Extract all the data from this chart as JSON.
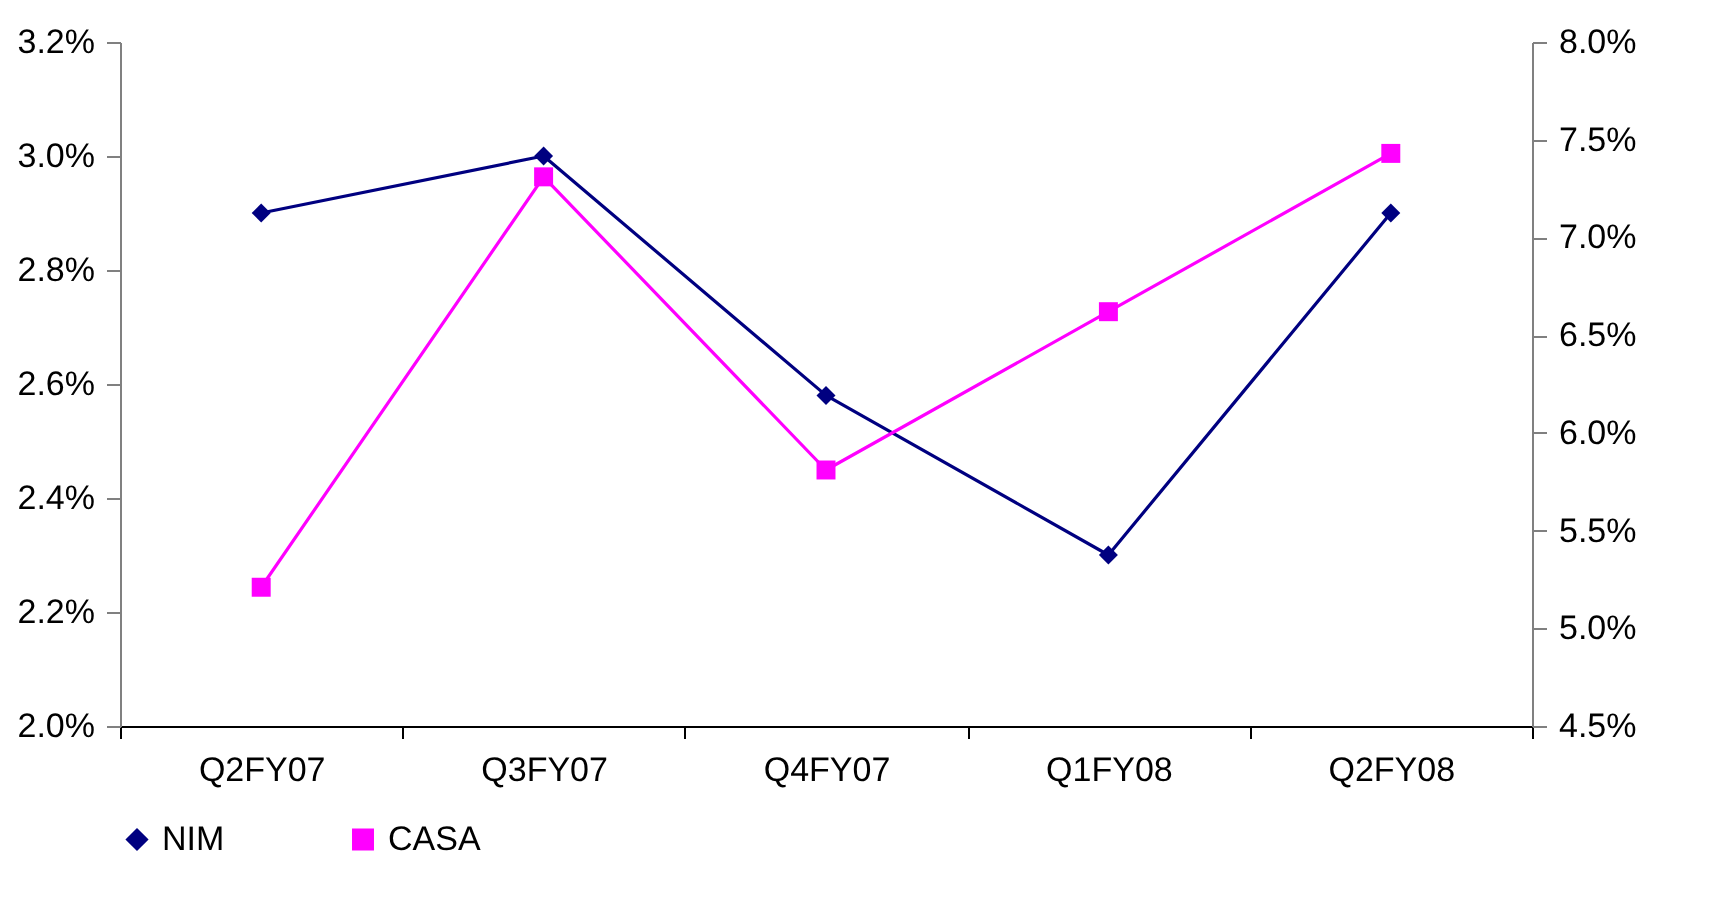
{
  "chart_data": {
    "type": "line",
    "categories": [
      "Q2FY07",
      "Q3FY07",
      "Q4FY07",
      "Q1FY08",
      "Q2FY08"
    ],
    "series": [
      {
        "name": "NIM",
        "color": "#000080",
        "marker": "diamond",
        "values": [
          2.9,
          3.0,
          2.58,
          2.3,
          2.9
        ]
      },
      {
        "name": "CASA",
        "color": "#ff00ff",
        "marker": "square",
        "axis": "y2",
        "values": [
          5.21,
          7.31,
          5.81,
          6.62,
          7.43
        ]
      }
    ],
    "ylim": [
      2.0,
      3.2
    ],
    "yticks": [
      {
        "value": 2.0,
        "label": "2.0%"
      },
      {
        "value": 2.2,
        "label": "2.2%"
      },
      {
        "value": 2.4,
        "label": "2.4%"
      },
      {
        "value": 2.6,
        "label": "2.6%"
      },
      {
        "value": 2.8,
        "label": "2.8%"
      },
      {
        "value": 3.0,
        "label": "3.0%"
      },
      {
        "value": 3.2,
        "label": "3.2%"
      }
    ],
    "y2lim": [
      4.5,
      8.0
    ],
    "y2ticks": [
      {
        "value": 4.5,
        "label": "4.5%"
      },
      {
        "value": 5.0,
        "label": "5.0%"
      },
      {
        "value": 5.5,
        "label": "5.5%"
      },
      {
        "value": 6.0,
        "label": "6.0%"
      },
      {
        "value": 6.5,
        "label": "6.5%"
      },
      {
        "value": 7.0,
        "label": "7.0%"
      },
      {
        "value": 7.5,
        "label": "7.5%"
      },
      {
        "value": 8.0,
        "label": "8.0%"
      }
    ],
    "grid": false,
    "legend": "bottom",
    "line_style": "solid"
  }
}
